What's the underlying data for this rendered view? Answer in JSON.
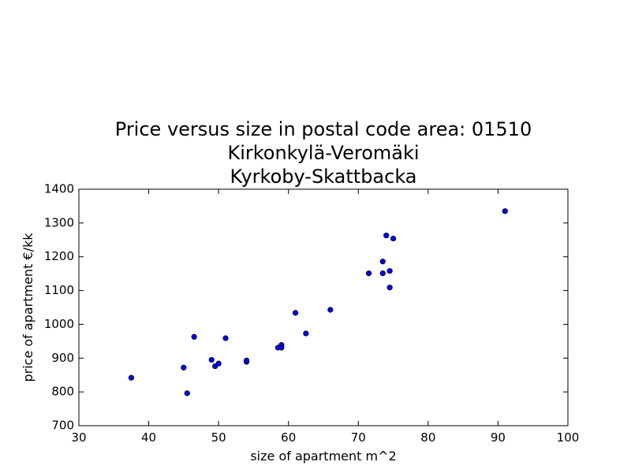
{
  "chart_data": {
    "type": "scatter",
    "title_lines": [
      "Price versus size in postal code area: 01510",
      "Kirkonkylä-Veromäki",
      "Kyrkoby-Skattbacka"
    ],
    "xlabel": "size of apartment m^2",
    "ylabel": "price of apartment €/kk",
    "xlim": [
      30,
      100
    ],
    "ylim": [
      700,
      1400
    ],
    "xticks": [
      "30",
      "40",
      "50",
      "60",
      "70",
      "80",
      "90",
      "100"
    ],
    "yticks": [
      "700",
      "800",
      "900",
      "1000",
      "1100",
      "1200",
      "1300",
      "1400"
    ],
    "grid": false,
    "marker_color": "#0000ff",
    "marker_edge": "#000000",
    "points": [
      {
        "x": 37.5,
        "y": 842
      },
      {
        "x": 45.0,
        "y": 872
      },
      {
        "x": 45.5,
        "y": 796
      },
      {
        "x": 46.5,
        "y": 963
      },
      {
        "x": 49.0,
        "y": 895
      },
      {
        "x": 49.5,
        "y": 876
      },
      {
        "x": 50.0,
        "y": 884
      },
      {
        "x": 51.0,
        "y": 959
      },
      {
        "x": 54.0,
        "y": 889
      },
      {
        "x": 54.0,
        "y": 893
      },
      {
        "x": 58.5,
        "y": 931
      },
      {
        "x": 59.0,
        "y": 939
      },
      {
        "x": 59.0,
        "y": 931
      },
      {
        "x": 61.0,
        "y": 1034
      },
      {
        "x": 62.5,
        "y": 973
      },
      {
        "x": 66.0,
        "y": 1043
      },
      {
        "x": 71.5,
        "y": 1151
      },
      {
        "x": 73.5,
        "y": 1186
      },
      {
        "x": 73.5,
        "y": 1151
      },
      {
        "x": 74.0,
        "y": 1263
      },
      {
        "x": 74.5,
        "y": 1158
      },
      {
        "x": 74.5,
        "y": 1109
      },
      {
        "x": 75.0,
        "y": 1254
      },
      {
        "x": 91.0,
        "y": 1335
      }
    ]
  }
}
